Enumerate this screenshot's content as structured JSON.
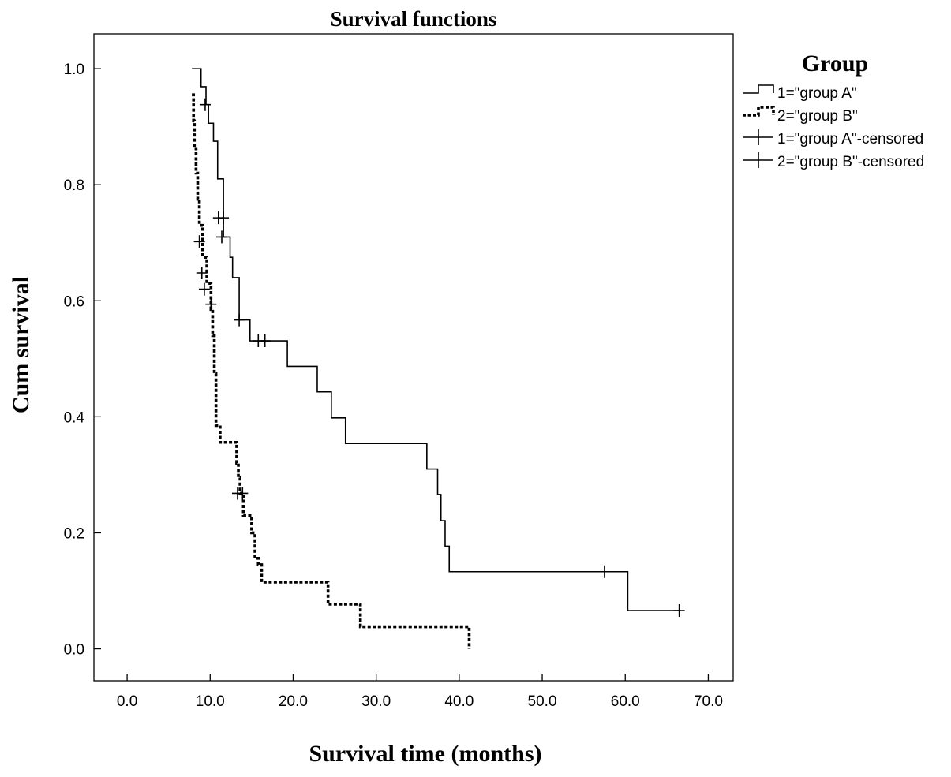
{
  "chart_data": {
    "type": "line",
    "title": "Survival functions",
    "xlabel": "Survival time (months)",
    "ylabel": "Cum survival",
    "xlim": [
      -4,
      73
    ],
    "ylim": [
      -0.055,
      1.06
    ],
    "xticks": [
      0,
      10,
      20,
      30,
      40,
      50,
      60,
      70
    ],
    "xtick_labels": [
      "0.0",
      "10.0",
      "20.0",
      "30.0",
      "40.0",
      "50.0",
      "60.0",
      "70.0"
    ],
    "yticks": [
      0,
      0.2,
      0.4,
      0.6,
      0.8,
      1.0
    ],
    "ytick_labels": [
      "0.0",
      "0.2",
      "0.4",
      "0.6",
      "0.8",
      "1.0"
    ],
    "grid": false,
    "legend": {
      "title": "Group",
      "placement": "right",
      "entries": [
        "1=\"group A\"",
        "2=\"group B\"",
        "1=\"group A\"-censored",
        "2=\"group B\"-censored"
      ]
    },
    "series": [
      {
        "name": "1=\"group A\"",
        "style": "solid",
        "color": "#000000",
        "x": [
          7.8,
          8.9,
          9.5,
          9.8,
          10.4,
          10.9,
          11.6,
          12.4,
          12.7,
          13.5,
          14.8,
          19.3,
          22.9,
          24.6,
          26.3,
          36.1,
          37.4,
          37.8,
          38.3,
          38.8,
          60.3,
          66.5
        ],
        "y": [
          1.0,
          0.969,
          0.938,
          0.906,
          0.875,
          0.81,
          0.71,
          0.675,
          0.64,
          0.567,
          0.531,
          0.487,
          0.443,
          0.398,
          0.354,
          0.31,
          0.266,
          0.221,
          0.177,
          0.133,
          0.066,
          0.066
        ],
        "censored": [
          {
            "x": 9.4,
            "y": 0.938
          },
          {
            "x": 11.0,
            "y": 0.743
          },
          {
            "x": 11.6,
            "y": 0.743
          },
          {
            "x": 11.4,
            "y": 0.71
          },
          {
            "x": 13.5,
            "y": 0.567
          },
          {
            "x": 15.8,
            "y": 0.531
          },
          {
            "x": 16.6,
            "y": 0.531
          },
          {
            "x": 57.5,
            "y": 0.133
          },
          {
            "x": 66.5,
            "y": 0.066
          }
        ]
      },
      {
        "name": "2=\"group B\"",
        "style": "dotted",
        "color": "#000000",
        "x": [
          7.8,
          8.0,
          8.1,
          8.3,
          8.5,
          8.7,
          9.1,
          9.6,
          10.1,
          10.3,
          10.5,
          10.7,
          11.2,
          13.2,
          13.4,
          13.6,
          14.0,
          15.0,
          15.4,
          15.8,
          16.2,
          24.2,
          28.1,
          41.2,
          41.2
        ],
        "y": [
          0.955,
          0.91,
          0.865,
          0.82,
          0.775,
          0.73,
          0.675,
          0.63,
          0.585,
          0.54,
          0.475,
          0.385,
          0.356,
          0.32,
          0.295,
          0.268,
          0.23,
          0.2,
          0.156,
          0.145,
          0.115,
          0.077,
          0.038,
          0.038,
          0.0
        ],
        "censored": [
          {
            "x": 8.7,
            "y": 0.702
          },
          {
            "x": 9.0,
            "y": 0.648
          },
          {
            "x": 9.3,
            "y": 0.62
          },
          {
            "x": 10.1,
            "y": 0.594
          },
          {
            "x": 13.3,
            "y": 0.268
          },
          {
            "x": 13.9,
            "y": 0.268
          }
        ]
      }
    ]
  }
}
